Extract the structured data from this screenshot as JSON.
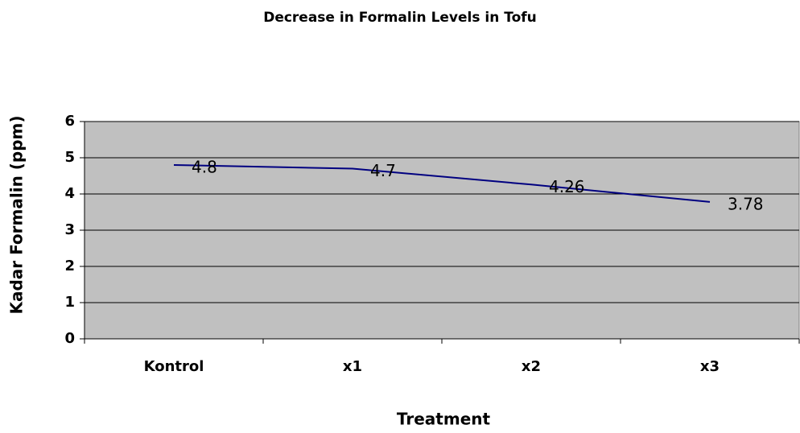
{
  "chart_data": {
    "type": "line",
    "title": "Decrease in Formalin Levels in Tofu",
    "x_label": "Treatment",
    "y_label": "Kadar Formalin (ppm)",
    "categories": [
      "Kontrol",
      "x1",
      "x2",
      "x3"
    ],
    "series": [
      {
        "name": "Kadar Formalin",
        "color": "#000080",
        "values": [
          4.8,
          4.7,
          4.26,
          3.78
        ]
      }
    ],
    "ylim": [
      0,
      6
    ],
    "yticks": [
      0,
      1,
      2,
      3,
      4,
      5,
      6
    ],
    "grid": true,
    "plot_background": "#c0c0c0",
    "data_labels": true
  }
}
